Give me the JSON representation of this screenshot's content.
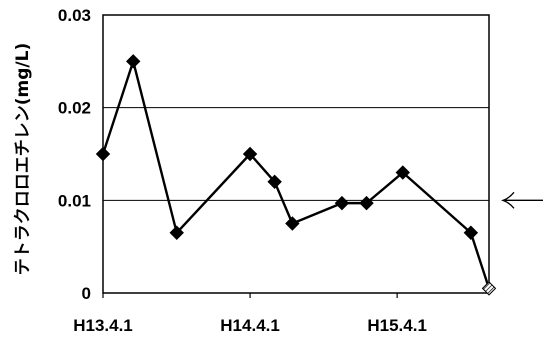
{
  "chart_data": {
    "type": "line",
    "title": "",
    "xlabel": "",
    "ylabel": "テトラクロロエチレン(mg/L)",
    "ylim": [
      0,
      0.03
    ],
    "y_ticks": [
      "0",
      "0.01",
      "0.02",
      "0.03"
    ],
    "x_tick_labels": [
      "H13.4.1",
      "H14.4.1",
      "H15.4.1"
    ],
    "x_tick_dates": [
      "2001-04-01",
      "2002-04-01",
      "2003-04-01"
    ],
    "xlim": [
      "2001-04-01",
      "2003-11-15"
    ],
    "grid": "horizontal",
    "legend": "none",
    "series": [
      {
        "color": "#000000",
        "x": [
          "2001-04-01",
          "2001-06-15",
          "2001-10-01",
          "2002-04-01",
          "2002-06-01",
          "2002-07-15",
          "2002-11-15",
          "2003-01-15",
          "2003-04-15",
          "2003-10-01",
          "2003-11-15"
        ],
        "values": [
          0.015,
          0.025,
          0.0065,
          0.015,
          0.012,
          0.0075,
          0.0097,
          0.0097,
          0.013,
          0.0065,
          0.0005
        ],
        "marker_styles": [
          "filled",
          "filled",
          "filled",
          "filled",
          "filled",
          "filled",
          "filled",
          "filled",
          "filled",
          "filled",
          "hatched"
        ]
      }
    ],
    "reference_arrow": {
      "y": 0.01,
      "direction": "left"
    }
  }
}
